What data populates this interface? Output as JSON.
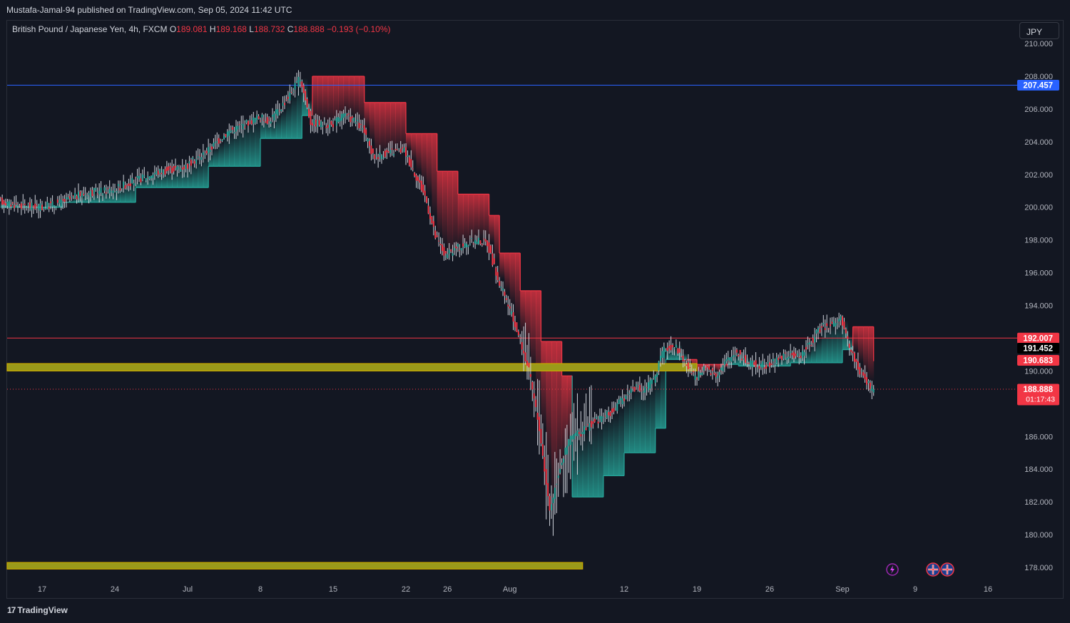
{
  "header": {
    "publisher": "Mustafa-Jamal-94 published on TradingView.com, Sep 05, 2024 11:42 UTC"
  },
  "legend": {
    "symbol": "British Pound / Japanese Yen, 4h, FXCM",
    "open_label": "O",
    "open": "189.081",
    "high_label": "H",
    "high": "189.168",
    "low_label": "L",
    "low": "188.732",
    "close_label": "C",
    "close": "188.888",
    "change": "−0.193 (−0.10%)"
  },
  "currency_button": "JPY",
  "footer": {
    "brand": "TradingView",
    "logo": "tv-logo-icon"
  },
  "colors": {
    "background": "#131722",
    "bull": "#26a69a",
    "bear": "#f23645",
    "blue_line": "#2962ff",
    "red_line": "#f23645",
    "zone": "#9a9a1a",
    "grid": "#1e222d"
  },
  "chart_data": {
    "type": "candlestick",
    "ylim": [
      177.2,
      210.5
    ],
    "grid": false,
    "x_tick_labels": [
      {
        "label": "17",
        "date": "2024-06-17"
      },
      {
        "label": "24",
        "date": "2024-06-24"
      },
      {
        "label": "Jul",
        "date": "2024-07-01"
      },
      {
        "label": "8",
        "date": "2024-07-08"
      },
      {
        "label": "15",
        "date": "2024-07-15"
      },
      {
        "label": "22",
        "date": "2024-07-22"
      },
      {
        "label": "26",
        "date": "2024-07-26"
      },
      {
        "label": "Aug",
        "date": "2024-08-01"
      },
      {
        "label": "12",
        "date": "2024-08-12"
      },
      {
        "label": "19",
        "date": "2024-08-19"
      },
      {
        "label": "26",
        "date": "2024-08-26"
      },
      {
        "label": "Sep",
        "date": "2024-09-02"
      },
      {
        "label": "9",
        "date": "2024-09-09"
      },
      {
        "label": "16",
        "date": "2024-09-16"
      }
    ],
    "y_tick_labels": [
      "210.000",
      "208.000",
      "206.000",
      "204.000",
      "202.000",
      "200.000",
      "198.000",
      "196.000",
      "194.000",
      "190.000",
      "186.000",
      "184.000",
      "182.000",
      "180.000",
      "178.000"
    ],
    "y_ticks": [
      210,
      208,
      206,
      204,
      202,
      200,
      198,
      196,
      194,
      190,
      186,
      184,
      182,
      180,
      178
    ],
    "price_labels": [
      {
        "value": 207.457,
        "text": "207.457",
        "bg": "#2962ff",
        "color": "#ffffff"
      },
      {
        "value": 192.007,
        "text": "192.007",
        "bg": "#f23645",
        "color": "#ffffff"
      },
      {
        "value": 191.452,
        "text": "191.452",
        "bg": "#000000",
        "color": "#ffffff"
      },
      {
        "value": 190.683,
        "text": "190.683",
        "bg": "#f23645",
        "color": "#ffffff"
      },
      {
        "value": 188.888,
        "text": "188.888",
        "bg": "#f23645",
        "color": "#ffffff",
        "sub": "01:17:43"
      }
    ],
    "horizontal_lines": [
      {
        "value": 207.457,
        "color": "#2962ff",
        "style": "solid"
      },
      {
        "value": 192.007,
        "color": "#f23645",
        "style": "solid"
      },
      {
        "value": 188.888,
        "color": "#f23645",
        "style": "dotted"
      }
    ],
    "zones": [
      {
        "low": 190.0,
        "high": 190.45,
        "start": "2024-06-13",
        "end": "2024-08-19"
      },
      {
        "low": 177.9,
        "high": 178.3,
        "start": "2024-06-13",
        "end": "2024-08-08"
      }
    ],
    "price_path": [
      [
        "2024-06-13",
        200.4
      ],
      [
        "2024-06-14",
        200.2
      ],
      [
        "2024-06-17",
        200.0
      ],
      [
        "2024-06-19",
        200.3
      ],
      [
        "2024-06-21",
        200.8
      ],
      [
        "2024-06-24",
        201.1
      ],
      [
        "2024-06-26",
        201.6
      ],
      [
        "2024-06-28",
        202.1
      ],
      [
        "2024-07-01",
        202.5
      ],
      [
        "2024-07-03",
        203.4
      ],
      [
        "2024-07-05",
        204.6
      ],
      [
        "2024-07-08",
        205.5
      ],
      [
        "2024-07-09",
        205.3
      ],
      [
        "2024-07-10",
        206.0
      ],
      [
        "2024-07-11",
        206.9
      ],
      [
        "2024-07-12",
        207.9
      ],
      [
        "2024-07-13",
        205.2
      ],
      [
        "2024-07-15",
        205.0
      ],
      [
        "2024-07-16",
        205.6
      ],
      [
        "2024-07-17",
        205.4
      ],
      [
        "2024-07-18",
        204.8
      ],
      [
        "2024-07-19",
        203.1
      ],
      [
        "2024-07-21",
        203.4
      ],
      [
        "2024-07-22",
        203.5
      ],
      [
        "2024-07-23",
        202.1
      ],
      [
        "2024-07-24",
        200.7
      ],
      [
        "2024-07-25",
        198.2
      ],
      [
        "2024-07-26",
        197.0
      ],
      [
        "2024-07-27",
        197.5
      ],
      [
        "2024-07-29",
        198.0
      ],
      [
        "2024-07-30",
        197.8
      ],
      [
        "2024-07-31",
        195.6
      ],
      [
        "2024-08-01",
        194.0
      ],
      [
        "2024-08-02",
        192.2
      ],
      [
        "2024-08-03",
        190.0
      ],
      [
        "2024-08-04",
        186.5
      ],
      [
        "2024-08-05",
        181.5
      ],
      [
        "2024-08-06",
        184.2
      ],
      [
        "2024-08-07",
        186.0
      ],
      [
        "2024-08-08",
        186.2
      ],
      [
        "2024-08-09",
        186.8
      ],
      [
        "2024-08-11",
        187.5
      ],
      [
        "2024-08-12",
        188.3
      ],
      [
        "2024-08-13",
        189.0
      ],
      [
        "2024-08-14",
        188.8
      ],
      [
        "2024-08-15",
        189.5
      ],
      [
        "2024-08-16",
        191.3
      ],
      [
        "2024-08-17",
        191.6
      ],
      [
        "2024-08-19",
        189.5
      ],
      [
        "2024-08-20",
        190.2
      ],
      [
        "2024-08-21",
        189.8
      ],
      [
        "2024-08-22",
        190.6
      ],
      [
        "2024-08-23",
        191.2
      ],
      [
        "2024-08-24",
        190.5
      ],
      [
        "2024-08-26",
        190.3
      ],
      [
        "2024-08-27",
        190.8
      ],
      [
        "2024-08-28",
        191.0
      ],
      [
        "2024-08-29",
        190.9
      ],
      [
        "2024-08-30",
        191.6
      ],
      [
        "2024-08-31",
        192.6
      ],
      [
        "2024-09-02",
        193.1
      ],
      [
        "2024-09-03",
        191.2
      ],
      [
        "2024-09-04",
        189.8
      ],
      [
        "2024-09-05",
        188.888
      ]
    ],
    "volatility_band": [
      [
        "2024-06-13",
        200.0
      ],
      [
        "2024-06-19",
        200.3
      ],
      [
        "2024-06-26",
        201.2
      ],
      [
        "2024-07-03",
        202.5
      ],
      [
        "2024-07-08",
        204.2
      ],
      [
        "2024-07-12",
        205.6
      ],
      [
        "2024-07-13",
        208.0
      ],
      [
        "2024-07-17",
        208.0
      ],
      [
        "2024-07-18",
        206.4
      ],
      [
        "2024-07-22",
        204.5
      ],
      [
        "2024-07-25",
        202.2
      ],
      [
        "2024-07-27",
        200.8
      ],
      [
        "2024-07-30",
        199.5
      ],
      [
        "2024-07-31",
        197.2
      ],
      [
        "2024-08-02",
        194.9
      ],
      [
        "2024-08-04",
        191.8
      ],
      [
        "2024-08-06",
        189.7
      ],
      [
        "2024-08-07",
        182.3
      ],
      [
        "2024-08-10",
        183.6
      ],
      [
        "2024-08-12",
        185.0
      ],
      [
        "2024-08-15",
        186.5
      ],
      [
        "2024-08-16",
        190.7
      ],
      [
        "2024-08-19",
        190.4
      ],
      [
        "2024-08-23",
        190.3
      ],
      [
        "2024-08-28",
        190.5
      ],
      [
        "2024-09-02",
        191.3
      ],
      [
        "2024-09-03",
        192.7
      ],
      [
        "2024-09-05",
        190.6
      ]
    ],
    "series": [
      {
        "name": "GBPJPY"
      }
    ]
  }
}
